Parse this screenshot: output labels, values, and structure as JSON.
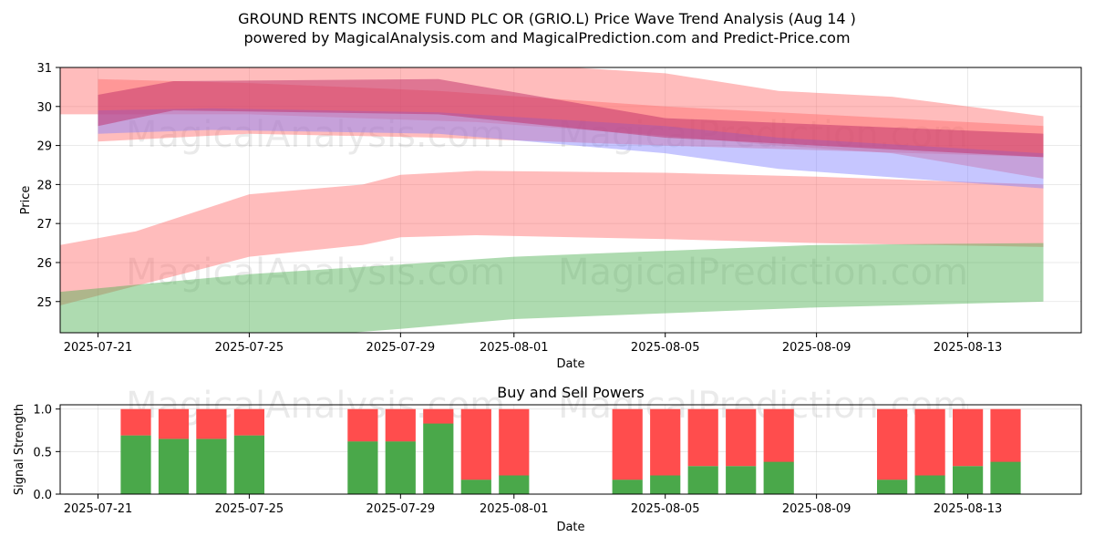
{
  "header": {
    "title_line1": "GROUND RENTS INCOME FUND PLC OR (GRIO.L) Price Wave Trend Analysis (Aug 14 )",
    "title_line2": "powered by MagicalAnalysis.com and MagicalPrediction.com and Predict-Price.com"
  },
  "watermarks": [
    "MagicalAnalysis.com",
    "MagicalPrediction.com"
  ],
  "colors": {
    "red_band": "#ff6b6b",
    "green_band": "#4caf50",
    "blue_band": "#8080ff",
    "magenta_band": "#c0306a",
    "buy": "#4aa84a",
    "sell": "#ff4d4d"
  },
  "chart_data": [
    {
      "type": "area",
      "title": "",
      "xlabel": "Date",
      "ylabel": "Price",
      "x_ticks": [
        "2025-07-21",
        "2025-07-25",
        "2025-07-29",
        "2025-08-01",
        "2025-08-05",
        "2025-08-09",
        "2025-08-13"
      ],
      "y_ticks": [
        "25",
        "26",
        "27",
        "28",
        "29",
        "30",
        "31"
      ],
      "ylim": [
        24.2,
        31.0
      ],
      "xlim": [
        "2025-07-20",
        "2025-08-16"
      ],
      "grid": true,
      "bands": [
        {
          "color": "red",
          "x": [
            "2025-07-20",
            "2025-07-22",
            "2025-07-25",
            "2025-07-28",
            "2025-07-29",
            "2025-07-31",
            "2025-08-05",
            "2025-08-09",
            "2025-08-15"
          ],
          "upper": [
            26.45,
            26.8,
            27.75,
            28.0,
            28.25,
            28.35,
            28.3,
            28.2,
            28.0
          ],
          "lower": [
            24.9,
            25.4,
            26.15,
            26.45,
            26.65,
            26.7,
            26.6,
            26.5,
            26.4
          ]
        },
        {
          "color": "green",
          "x": [
            "2025-07-20",
            "2025-07-25",
            "2025-07-29",
            "2025-08-01",
            "2025-08-05",
            "2025-08-09",
            "2025-08-15"
          ],
          "upper": [
            25.25,
            25.7,
            25.95,
            26.15,
            26.3,
            26.45,
            26.5
          ],
          "lower": [
            23.8,
            24.0,
            24.3,
            24.55,
            24.7,
            24.85,
            25.0
          ]
        },
        {
          "color": "red",
          "x": [
            "2025-07-20",
            "2025-07-25",
            "2025-07-31",
            "2025-08-05",
            "2025-08-08",
            "2025-08-11",
            "2025-08-15"
          ],
          "upper": [
            31.1,
            31.2,
            31.15,
            30.85,
            30.4,
            30.25,
            29.75
          ],
          "lower": [
            29.8,
            29.8,
            29.6,
            29.25,
            29.0,
            28.8,
            28.15
          ]
        },
        {
          "color": "red",
          "x": [
            "2025-07-21",
            "2025-07-25",
            "2025-07-30",
            "2025-08-05",
            "2025-08-15"
          ],
          "upper": [
            30.7,
            30.6,
            30.4,
            30.0,
            29.5
          ],
          "lower": [
            29.1,
            29.3,
            29.2,
            29.0,
            28.7
          ]
        },
        {
          "color": "blue",
          "x": [
            "2025-07-21",
            "2025-07-24",
            "2025-07-30",
            "2025-08-05",
            "2025-08-08",
            "2025-08-15"
          ],
          "upper": [
            29.9,
            29.95,
            29.85,
            29.5,
            29.2,
            28.8
          ],
          "lower": [
            29.3,
            29.4,
            29.3,
            28.8,
            28.4,
            27.9
          ]
        },
        {
          "color": "magenta",
          "x": [
            "2025-07-21",
            "2025-07-23",
            "2025-07-30",
            "2025-08-05",
            "2025-08-15"
          ],
          "upper": [
            30.3,
            30.65,
            30.7,
            29.7,
            29.3
          ],
          "lower": [
            29.5,
            29.9,
            29.8,
            29.2,
            28.7
          ]
        }
      ]
    },
    {
      "type": "bar",
      "title": "Buy and Sell Powers",
      "xlabel": "Date",
      "ylabel": "Signal Strength",
      "ylim": [
        0,
        1.05
      ],
      "y_ticks": [
        "0.0",
        "0.5",
        "1.0"
      ],
      "x_ticks": [
        "2025-07-21",
        "2025-07-25",
        "2025-07-29",
        "2025-08-01",
        "2025-08-05",
        "2025-08-09",
        "2025-08-13"
      ],
      "xlim": [
        "2025-07-20",
        "2025-08-16"
      ],
      "categories": [
        "2025-07-22",
        "2025-07-23",
        "2025-07-24",
        "2025-07-25",
        "2025-07-28",
        "2025-07-29",
        "2025-07-30",
        "2025-07-31",
        "2025-08-01",
        "2025-08-04",
        "2025-08-05",
        "2025-08-06",
        "2025-08-07",
        "2025-08-08",
        "2025-08-11",
        "2025-08-12",
        "2025-08-13",
        "2025-08-14"
      ],
      "series": [
        {
          "name": "Buy",
          "values": [
            0.69,
            0.65,
            0.65,
            0.69,
            0.62,
            0.62,
            0.83,
            0.17,
            0.22,
            0.17,
            0.22,
            0.33,
            0.33,
            0.38,
            0.17,
            0.22,
            0.33,
            0.38
          ]
        },
        {
          "name": "Sell",
          "values": [
            0.31,
            0.35,
            0.35,
            0.31,
            0.38,
            0.38,
            0.17,
            0.83,
            0.78,
            0.83,
            0.78,
            0.67,
            0.67,
            0.62,
            0.83,
            0.78,
            0.67,
            0.62
          ]
        }
      ]
    }
  ]
}
